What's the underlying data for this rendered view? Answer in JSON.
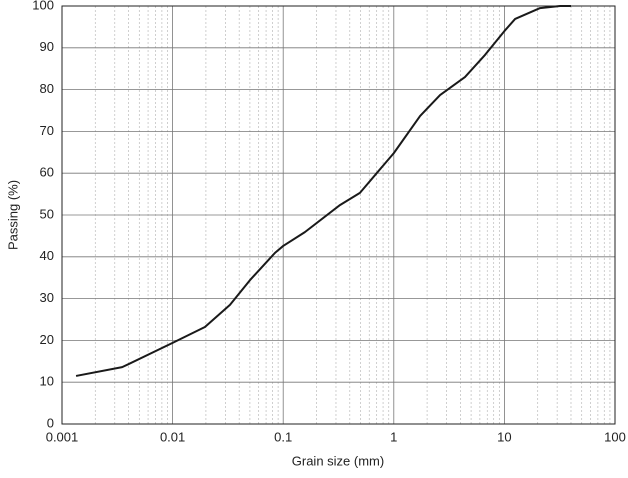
{
  "chart_data": {
    "type": "line",
    "x_label": "Grain size (mm)",
    "y_label": "Passing (%)",
    "log_x": true,
    "grid": true,
    "xlim": [
      0.001,
      100
    ],
    "xticks": [
      0.001,
      0.01,
      0.1,
      1,
      10,
      100
    ],
    "xminor": [
      0.002,
      0.003,
      0.004,
      0.005,
      0.006,
      0.007,
      0.008,
      0.009,
      0.02,
      0.03,
      0.04,
      0.05,
      0.06,
      0.07,
      0.08,
      0.09,
      0.2,
      0.3,
      0.4,
      0.5,
      0.6,
      0.7,
      0.8,
      0.9,
      2,
      3,
      4,
      5,
      6,
      7,
      8,
      9,
      20,
      30,
      40,
      50,
      60,
      70,
      80,
      90
    ],
    "ylim": [
      0,
      100
    ],
    "yticks": [
      0,
      10,
      20,
      30,
      40,
      50,
      60,
      70,
      80,
      90,
      100
    ],
    "series": [
      {
        "color": "#1a1a1a",
        "x": [
          0.00134,
          0.0035,
          0.01,
          0.0196,
          0.033,
          0.05,
          0.084,
          0.1,
          0.157,
          0.327,
          0.494,
          1,
          1.73,
          2.62,
          4.4,
          6.68,
          10,
          12.5,
          21,
          31.8,
          40
        ],
        "values": [
          11.5,
          13.6,
          19.4,
          23.2,
          28.5,
          34.4,
          40.9,
          42.6,
          45.9,
          52.4,
          55.3,
          64.8,
          73.7,
          78.7,
          83,
          88.3,
          94,
          96.9,
          99.5,
          100,
          100
        ]
      }
    ]
  }
}
